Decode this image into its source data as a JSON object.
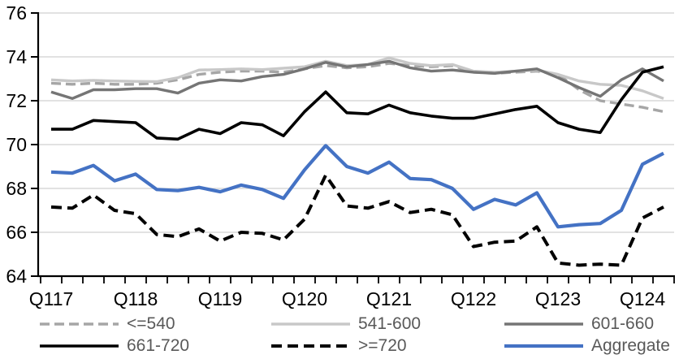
{
  "chart_data": {
    "type": "line",
    "x_axis": {
      "labels": [
        "Q117",
        "Q118",
        "Q119",
        "Q120",
        "Q121",
        "Q122",
        "Q123",
        "Q124"
      ],
      "points_per_label": 4,
      "total_points": 30
    },
    "y_axis": {
      "min": 64,
      "max": 76,
      "tick_step": 2,
      "tick_labels": [
        "64",
        "66",
        "68",
        "70",
        "72",
        "74",
        "76"
      ]
    },
    "grid": "horizontal",
    "legend_position": "bottom",
    "legend_text_color": "#595959",
    "series": [
      {
        "name": "<=540",
        "color": "#a6a6a6",
        "style": "dashed",
        "width": 3.4,
        "values": [
          72.8,
          72.75,
          72.8,
          72.75,
          72.75,
          72.8,
          72.95,
          73.2,
          73.3,
          73.35,
          73.35,
          73.3,
          73.45,
          73.6,
          73.5,
          73.55,
          73.7,
          73.6,
          73.55,
          73.6,
          73.3,
          73.25,
          73.3,
          73.35,
          73.2,
          72.5,
          72.0,
          71.85,
          71.7,
          71.5
        ]
      },
      {
        "name": "541-600",
        "color": "#c8c8c8",
        "style": "solid",
        "width": 3.4,
        "values": [
          72.95,
          72.9,
          72.93,
          72.9,
          72.88,
          72.87,
          73.05,
          73.4,
          73.42,
          73.45,
          73.42,
          73.48,
          73.55,
          73.8,
          73.6,
          73.65,
          73.95,
          73.7,
          73.6,
          73.65,
          73.35,
          73.3,
          73.35,
          73.4,
          73.2,
          72.9,
          72.75,
          72.7,
          72.45,
          72.1
        ]
      },
      {
        "name": "601-660",
        "color": "#757575",
        "style": "solid",
        "width": 3.4,
        "values": [
          72.4,
          72.1,
          72.5,
          72.5,
          72.55,
          72.55,
          72.35,
          72.8,
          72.95,
          72.9,
          73.1,
          73.2,
          73.45,
          73.75,
          73.55,
          73.65,
          73.8,
          73.5,
          73.35,
          73.4,
          73.3,
          73.25,
          73.35,
          73.45,
          73.05,
          72.6,
          72.2,
          72.95,
          73.45,
          72.9
        ]
      },
      {
        "name": "661-720",
        "color": "#000000",
        "style": "solid",
        "width": 3.6,
        "values": [
          70.7,
          70.7,
          71.1,
          71.05,
          71.0,
          70.3,
          70.25,
          70.7,
          70.5,
          71.0,
          70.9,
          70.4,
          71.5,
          72.4,
          71.45,
          71.4,
          71.8,
          71.45,
          71.3,
          71.2,
          71.2,
          71.4,
          71.6,
          71.75,
          71.0,
          70.7,
          70.55,
          72.05,
          73.3,
          73.55
        ]
      },
      {
        "name": ">=720",
        "color": "#000000",
        "style": "dashed",
        "width": 4.0,
        "values": [
          67.15,
          67.1,
          67.7,
          67.0,
          66.85,
          65.9,
          65.8,
          66.15,
          65.6,
          66.0,
          65.95,
          65.65,
          66.6,
          68.6,
          67.2,
          67.1,
          67.4,
          66.9,
          67.05,
          66.8,
          65.35,
          65.55,
          65.6,
          66.25,
          64.6,
          64.5,
          64.55,
          64.5,
          66.65,
          67.15
        ]
      },
      {
        "name": "Aggregate",
        "color": "#4472c4",
        "style": "solid",
        "width": 4.2,
        "values": [
          68.75,
          68.7,
          69.05,
          68.35,
          68.65,
          67.95,
          67.9,
          68.05,
          67.85,
          68.15,
          67.95,
          67.55,
          68.85,
          69.95,
          69.0,
          68.7,
          69.2,
          68.45,
          68.4,
          68.0,
          67.05,
          67.5,
          67.25,
          67.8,
          66.25,
          66.35,
          66.4,
          67.0,
          69.1,
          69.6
        ]
      }
    ],
    "colors": {
      "gridline": "#d9d9d9",
      "axis": "#000000",
      "tick_label": "#000000"
    }
  }
}
